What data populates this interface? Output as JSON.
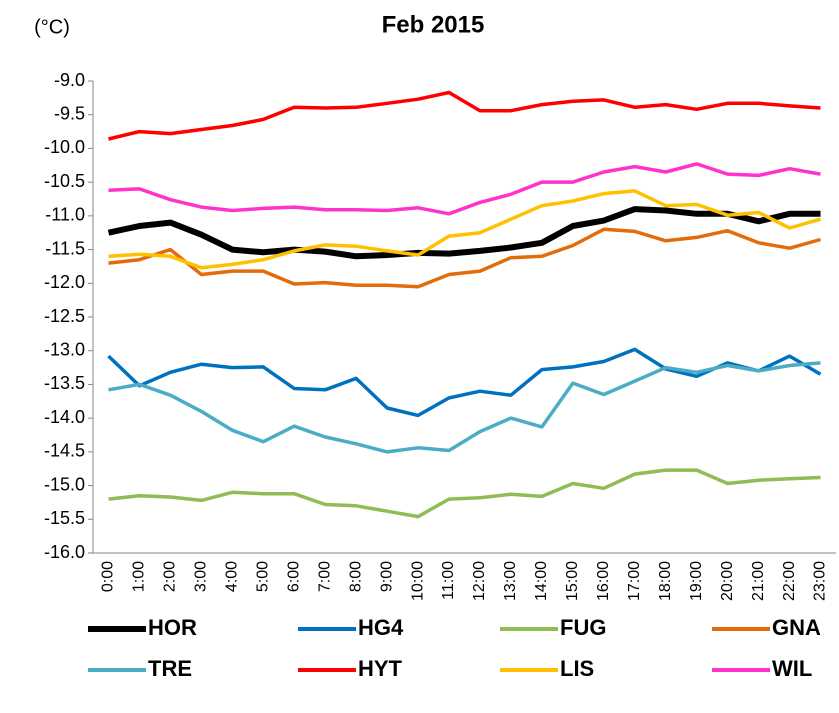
{
  "chart_data": {
    "type": "line",
    "title": "Feb 2015",
    "y_label": "(°C)",
    "categories": [
      "0:00",
      "1:00",
      "2:00",
      "3:00",
      "4:00",
      "5:00",
      "6:00",
      "7:00",
      "8:00",
      "9:00",
      "10:00",
      "11:00",
      "12:00",
      "13:00",
      "14:00",
      "15:00",
      "16:00",
      "17:00",
      "18:00",
      "19:00",
      "20:00",
      "21:00",
      "22:00",
      "23:00"
    ],
    "ylim": [
      -16,
      -9
    ],
    "yticks": [
      {
        "value": -16,
        "label": "-16.0"
      },
      -15.5,
      {
        "value": -15,
        "label": "-15.0"
      },
      -14.5,
      {
        "value": -14,
        "label": "-14.0"
      },
      -13.5,
      {
        "value": -13,
        "label": "-13.0"
      },
      -12.5,
      {
        "value": -12,
        "label": "-12.0"
      },
      -11.5,
      {
        "value": -11,
        "label": "-11.0"
      },
      -10.5,
      {
        "value": -10,
        "label": "-10.0"
      },
      -9.5,
      {
        "value": -9,
        "label": "-9.0"
      }
    ],
    "grid": false,
    "legend": "bottom",
    "series": [
      {
        "name": "HOR",
        "color": "#000000",
        "values": [
          -11.25,
          -11.15,
          -11.1,
          -11.28,
          -11.5,
          -11.54,
          -11.5,
          -11.53,
          -11.6,
          -11.58,
          -11.55,
          -11.56,
          -11.52,
          -11.47,
          -11.4,
          -11.15,
          -11.07,
          -10.9,
          -10.92,
          -10.97,
          -10.97,
          -11.08,
          -10.97,
          -10.97
        ]
      },
      {
        "name": "HG4",
        "color": "#0070c0",
        "values": [
          -13.08,
          -13.52,
          -13.32,
          -13.2,
          -13.25,
          -13.24,
          -13.56,
          -13.58,
          -13.41,
          -13.85,
          -13.96,
          -13.7,
          -13.6,
          -13.66,
          -13.28,
          -13.24,
          -13.16,
          -12.98,
          -13.27,
          -13.38,
          -13.18,
          -13.3,
          -13.08,
          -13.35
        ]
      },
      {
        "name": "FUG",
        "color": "#8fbc55",
        "values": [
          -15.2,
          -15.15,
          -15.17,
          -15.22,
          -15.1,
          -15.12,
          -15.12,
          -15.28,
          -15.3,
          -15.38,
          -15.46,
          -15.2,
          -15.18,
          -15.13,
          -15.16,
          -14.97,
          -15.04,
          -14.83,
          -14.77,
          -14.77,
          -14.97,
          -14.92,
          -14.9,
          -14.88
        ]
      },
      {
        "name": "GNA",
        "color": "#e36c0a",
        "values": [
          -11.7,
          -11.65,
          -11.5,
          -11.87,
          -11.82,
          -11.82,
          -12.01,
          -11.99,
          -12.03,
          -12.03,
          -12.05,
          -11.87,
          -11.82,
          -11.62,
          -11.6,
          -11.44,
          -11.2,
          -11.23,
          -11.37,
          -11.32,
          -11.22,
          -11.4,
          -11.48,
          -11.35
        ]
      },
      {
        "name": "TRE",
        "color": "#4bacc6",
        "values": [
          -13.58,
          -13.5,
          -13.66,
          -13.9,
          -14.18,
          -14.35,
          -14.12,
          -14.28,
          -14.38,
          -14.5,
          -14.44,
          -14.48,
          -14.2,
          -14.0,
          -14.13,
          -13.48,
          -13.65,
          -13.45,
          -13.25,
          -13.32,
          -13.22,
          -13.3,
          -13.22,
          -13.18
        ]
      },
      {
        "name": "HYT",
        "color": "#ff0000",
        "values": [
          -9.86,
          -9.75,
          -9.78,
          -9.72,
          -9.66,
          -9.57,
          -9.39,
          -9.4,
          -9.39,
          -9.33,
          -9.27,
          -9.17,
          -9.44,
          -9.44,
          -9.35,
          -9.3,
          -9.28,
          -9.39,
          -9.35,
          -9.42,
          -9.33,
          -9.33,
          -9.37,
          -9.4
        ]
      },
      {
        "name": "LIS",
        "color": "#ffc000",
        "values": [
          -11.6,
          -11.57,
          -11.6,
          -11.77,
          -11.72,
          -11.65,
          -11.52,
          -11.43,
          -11.45,
          -11.52,
          -11.58,
          -11.3,
          -11.25,
          -11.05,
          -10.85,
          -10.78,
          -10.67,
          -10.63,
          -10.85,
          -10.83,
          -10.99,
          -10.95,
          -11.18,
          -11.05
        ]
      },
      {
        "name": "WIL",
        "color": "#ff33cc",
        "values": [
          -10.62,
          -10.6,
          -10.76,
          -10.87,
          -10.92,
          -10.89,
          -10.87,
          -10.91,
          -10.91,
          -10.92,
          -10.88,
          -10.97,
          -10.8,
          -10.68,
          -10.5,
          -10.5,
          -10.35,
          -10.27,
          -10.35,
          -10.23,
          -10.38,
          -10.4,
          -10.3,
          -10.38
        ]
      }
    ]
  }
}
